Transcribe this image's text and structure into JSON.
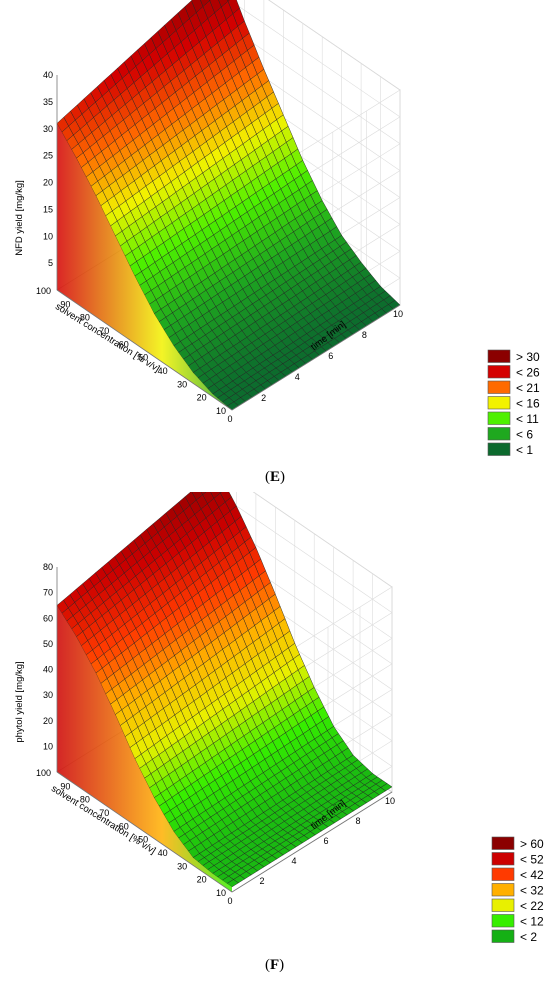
{
  "panels": [
    {
      "label_open": "(",
      "label_letter": "E",
      "label_close": ")"
    },
    {
      "label_open": "(",
      "label_letter": "F",
      "label_close": ")"
    }
  ],
  "chart_data": [
    {
      "type": "surface3d",
      "zlabel": "NFD yield [mg/kg]",
      "xlabel": "time [min]",
      "ylabel": "solvent concentration [% v/v]",
      "x_ticks": [
        "0",
        "2",
        "4",
        "6",
        "8",
        "10"
      ],
      "y_ticks": [
        "10",
        "20",
        "30",
        "40",
        "50",
        "60",
        "70",
        "80",
        "90",
        "100"
      ],
      "z_ticks": [
        "5",
        "10",
        "15",
        "20",
        "25",
        "30",
        "35",
        "40"
      ],
      "xlim": [
        0,
        10
      ],
      "ylim": [
        10,
        100
      ],
      "zlim": [
        0,
        40
      ],
      "surface_z_by_concentration": {
        "concentration": [
          10,
          20,
          30,
          40,
          50,
          60,
          70,
          80,
          90,
          100
        ],
        "z_at_time_0": [
          0,
          0.5,
          2,
          4.5,
          8,
          12.5,
          17.5,
          22.5,
          27,
          31
        ],
        "z_at_time_10": [
          0,
          1,
          3,
          5.5,
          9.5,
          14.5,
          20.5,
          26.5,
          33,
          40
        ]
      },
      "legend": [
        {
          "label": "> 30",
          "color": "#8b0000"
        },
        {
          "label": "< 26",
          "color": "#d40000"
        },
        {
          "label": "< 21",
          "color": "#ff6a00"
        },
        {
          "label": "< 16",
          "color": "#f2f200"
        },
        {
          "label": "< 11",
          "color": "#4ef000"
        },
        {
          "label": "< 6",
          "color": "#1fa81f"
        },
        {
          "label": "< 1",
          "color": "#0c6a2e"
        }
      ]
    },
    {
      "type": "surface3d",
      "zlabel": "phytol yield [mg/kg]",
      "xlabel": "time [min]",
      "ylabel": "solvent concentration [% v/v]",
      "x_ticks": [
        "0",
        "2",
        "4",
        "6",
        "8",
        "10"
      ],
      "y_ticks": [
        "10",
        "20",
        "30",
        "40",
        "50",
        "60",
        "70",
        "80",
        "90",
        "100"
      ],
      "z_ticks": [
        "10",
        "20",
        "30",
        "40",
        "50",
        "60",
        "70",
        "80"
      ],
      "xlim": [
        0,
        10
      ],
      "ylim": [
        10,
        100
      ],
      "zlim": [
        0,
        80
      ],
      "surface_z_by_concentration": {
        "concentration": [
          10,
          20,
          30,
          40,
          50,
          60,
          70,
          80,
          90,
          100
        ],
        "z_at_time_0": [
          2,
          2,
          3,
          8,
          16,
          26,
          38,
          49,
          58,
          65
        ],
        "z_at_time_10": [
          2,
          2,
          4,
          10,
          20,
          32,
          46,
          59,
          70,
          79
        ]
      },
      "legend": [
        {
          "label": "> 60",
          "color": "#8b0000"
        },
        {
          "label": "< 52",
          "color": "#cc0000"
        },
        {
          "label": "< 42",
          "color": "#ff3a00"
        },
        {
          "label": "< 32",
          "color": "#ffb000"
        },
        {
          "label": "< 22",
          "color": "#e8f000"
        },
        {
          "label": "< 12",
          "color": "#36ee00"
        },
        {
          "label": "< 2",
          "color": "#15b015"
        }
      ]
    }
  ]
}
